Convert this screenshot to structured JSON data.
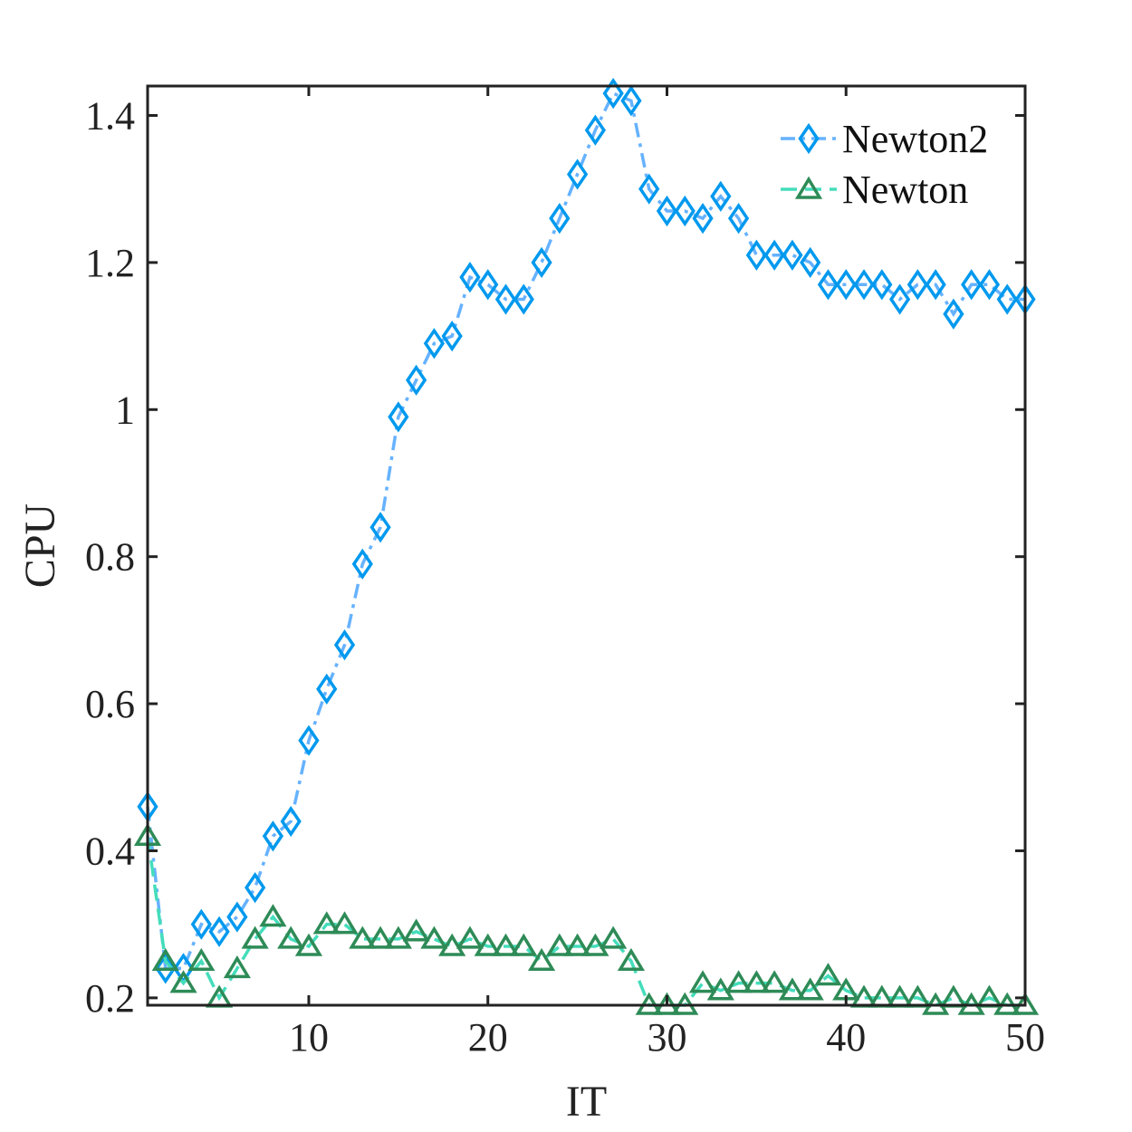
{
  "chart_data": {
    "type": "line",
    "title": "",
    "xlabel": "IT",
    "ylabel": "CPU",
    "xlim": [
      1,
      50
    ],
    "ylim": [
      0.19,
      1.44
    ],
    "xticks": [
      10,
      20,
      30,
      40,
      50
    ],
    "xtick_labels": [
      "10",
      "20",
      "30",
      "40",
      "50"
    ],
    "yticks": [
      0.2,
      0.4,
      0.6,
      0.8,
      1.0,
      1.2,
      1.4
    ],
    "ytick_labels": [
      "0.2",
      "0.4",
      "0.6",
      "0.8",
      "1",
      "1.2",
      "1.4"
    ],
    "grid": false,
    "legend_position": "top-right",
    "x": [
      1,
      2,
      3,
      4,
      5,
      6,
      7,
      8,
      9,
      10,
      11,
      12,
      13,
      14,
      15,
      16,
      17,
      18,
      19,
      20,
      21,
      22,
      23,
      24,
      25,
      26,
      27,
      28,
      29,
      30,
      31,
      32,
      33,
      34,
      35,
      36,
      37,
      38,
      39,
      40,
      41,
      42,
      43,
      44,
      45,
      46,
      47,
      48,
      49,
      50
    ],
    "series": [
      {
        "name": "Newton2",
        "marker": "diamond",
        "line_style": "dash-dot",
        "line_color": "#66b2ff",
        "marker_color": "#0099ee",
        "values": [
          0.46,
          0.24,
          0.24,
          0.3,
          0.29,
          0.31,
          0.35,
          0.42,
          0.44,
          0.55,
          0.62,
          0.68,
          0.79,
          0.84,
          0.99,
          1.04,
          1.09,
          1.1,
          1.18,
          1.17,
          1.15,
          1.15,
          1.2,
          1.26,
          1.32,
          1.38,
          1.43,
          1.42,
          1.3,
          1.27,
          1.27,
          1.26,
          1.29,
          1.26,
          1.21,
          1.21,
          1.21,
          1.2,
          1.17,
          1.17,
          1.17,
          1.17,
          1.15,
          1.17,
          1.17,
          1.13,
          1.17,
          1.17,
          1.15,
          1.15
        ]
      },
      {
        "name": "Newton",
        "marker": "triangle",
        "line_style": "dashed",
        "line_color": "#44ddbb",
        "marker_color": "#2e8b57",
        "values": [
          0.42,
          0.25,
          0.22,
          0.25,
          0.2,
          0.24,
          0.28,
          0.31,
          0.28,
          0.27,
          0.3,
          0.3,
          0.28,
          0.28,
          0.28,
          0.29,
          0.28,
          0.27,
          0.28,
          0.27,
          0.27,
          0.27,
          0.25,
          0.27,
          0.27,
          0.27,
          0.28,
          0.25,
          0.19,
          0.19,
          0.19,
          0.22,
          0.21,
          0.22,
          0.22,
          0.22,
          0.21,
          0.21,
          0.23,
          0.21,
          0.2,
          0.2,
          0.2,
          0.2,
          0.19,
          0.2,
          0.19,
          0.2,
          0.19,
          0.19
        ]
      }
    ]
  }
}
